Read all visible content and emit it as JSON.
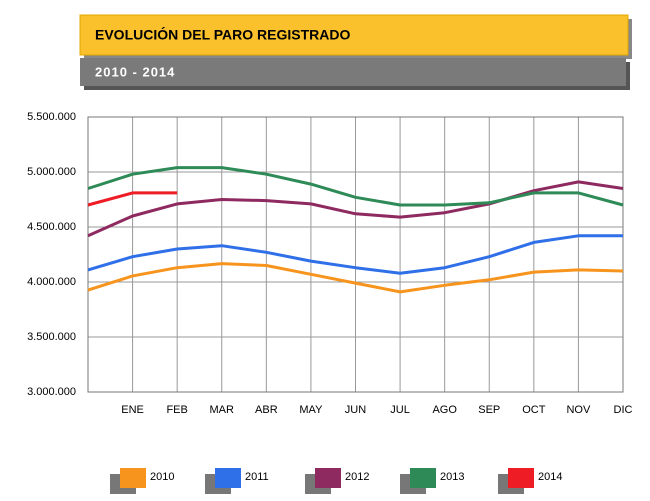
{
  "chart_data": {
    "type": "line",
    "title": "EVOLUCIÓN DEL PARO REGISTRADO",
    "subtitle": "2010 - 2014",
    "categories": [
      null,
      "ENE",
      "FEB",
      "MAR",
      "ABR",
      "MAY",
      "JUN",
      "JUL",
      "AGO",
      "SEP",
      "OCT",
      "NOV",
      "DIC"
    ],
    "series": [
      {
        "name": "2010",
        "color": "#f7941d",
        "values": [
          3927000,
          4055000,
          4130000,
          4167000,
          4150000,
          4070000,
          3990000,
          3910000,
          3970000,
          4020000,
          4090000,
          4110000,
          4100000
        ]
      },
      {
        "name": "2011",
        "color": "#2f6fe8",
        "values": [
          4110000,
          4230000,
          4300000,
          4330000,
          4270000,
          4190000,
          4130000,
          4080000,
          4130000,
          4230000,
          4360000,
          4420000,
          4420000
        ]
      },
      {
        "name": "2012",
        "color": "#8e2a60",
        "values": [
          4420000,
          4600000,
          4710000,
          4750000,
          4740000,
          4710000,
          4620000,
          4590000,
          4630000,
          4710000,
          4830000,
          4910000,
          4850000
        ]
      },
      {
        "name": "2013",
        "color": "#2e8b57",
        "values": [
          4850000,
          4980000,
          5040000,
          5040000,
          4980000,
          4890000,
          4770000,
          4700000,
          4700000,
          4720000,
          4810000,
          4810000,
          4700000
        ]
      },
      {
        "name": "2014",
        "color": "#ee1c25",
        "values": [
          4700000,
          4810000,
          4810000,
          null,
          null,
          null,
          null,
          null,
          null,
          null,
          null,
          null,
          null
        ]
      }
    ],
    "ylim": [
      3000000,
      5500000
    ],
    "yticks": [
      {
        "value": 3000000,
        "label": "3.000.000"
      },
      {
        "value": 3500000,
        "label": "3.500.000"
      },
      {
        "value": 4000000,
        "label": "4.000.000"
      },
      {
        "value": 4500000,
        "label": "4.500.000"
      },
      {
        "value": 5000000,
        "label": "5.000.000"
      },
      {
        "value": 5500000,
        "label": "5.500.000"
      }
    ],
    "grid": true
  }
}
